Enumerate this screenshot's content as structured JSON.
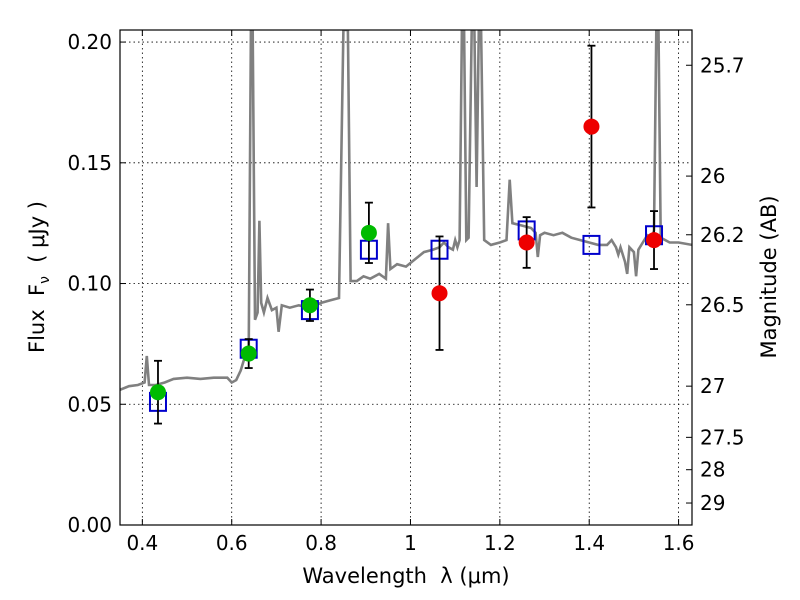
{
  "chart_data": {
    "type": "scatter",
    "xlabel": "Wavelength  λ (μm)",
    "ylabel": "Flux  F_ν  ( μJy )",
    "ylabel_right": "Magnitude (AB)",
    "xlim": [
      0.35,
      1.63
    ],
    "ylim": [
      0.0,
      0.205
    ],
    "x_ticks": [
      0.4,
      0.6,
      0.8,
      1.0,
      1.2,
      1.4,
      1.6
    ],
    "x_tick_labels": [
      "0.4",
      "0.6",
      "0.8",
      "1",
      "1.2",
      "1.4",
      "1.6"
    ],
    "y_ticks": [
      0.0,
      0.05,
      0.1,
      0.15,
      0.2
    ],
    "y_tick_labels": [
      "0.00",
      "0.05",
      "0.10",
      "0.15",
      "0.20"
    ],
    "right_ticks": [
      {
        "flux": 0.1904,
        "label": "25.7"
      },
      {
        "flux": 0.1445,
        "label": "26"
      },
      {
        "flux": 0.1202,
        "label": "26.2"
      },
      {
        "flux": 0.0912,
        "label": "26.5"
      },
      {
        "flux": 0.0575,
        "label": "27"
      },
      {
        "flux": 0.0363,
        "label": "27.5"
      },
      {
        "flux": 0.0229,
        "label": "28"
      },
      {
        "flux": 0.0091,
        "label": "29"
      }
    ],
    "grid": true,
    "series": [
      {
        "marker": "square-open",
        "color": "#0000cc",
        "points": [
          {
            "x": 0.435,
            "y": 0.051
          },
          {
            "x": 0.638,
            "y": 0.073
          },
          {
            "x": 0.775,
            "y": 0.089
          },
          {
            "x": 0.907,
            "y": 0.114
          },
          {
            "x": 1.065,
            "y": 0.114
          },
          {
            "x": 1.26,
            "y": 0.122
          },
          {
            "x": 1.405,
            "y": 0.116
          },
          {
            "x": 1.545,
            "y": 0.12
          }
        ]
      },
      {
        "marker": "circle-filled",
        "color": "#00bb00",
        "points": [
          {
            "x": 0.435,
            "y": 0.055,
            "err": 0.013
          },
          {
            "x": 0.638,
            "y": 0.071,
            "err": 0.006
          },
          {
            "x": 0.775,
            "y": 0.091,
            "err": 0.0065
          },
          {
            "x": 0.907,
            "y": 0.121,
            "err": 0.0125
          }
        ]
      },
      {
        "marker": "circle-filled",
        "color": "#ee0000",
        "points": [
          {
            "x": 1.065,
            "y": 0.096,
            "err": 0.0235
          },
          {
            "x": 1.26,
            "y": 0.117,
            "err": 0.0105
          },
          {
            "x": 1.405,
            "y": 0.165,
            "err": 0.0335
          },
          {
            "x": 1.545,
            "y": 0.118,
            "err": 0.012
          }
        ]
      },
      {
        "marker": "line",
        "color": "#808080",
        "points": [
          {
            "x": 0.35,
            "y": 0.056
          },
          {
            "x": 0.37,
            "y": 0.0575
          },
          {
            "x": 0.39,
            "y": 0.058
          },
          {
            "x": 0.405,
            "y": 0.059
          },
          {
            "x": 0.41,
            "y": 0.07
          },
          {
            "x": 0.415,
            "y": 0.058
          },
          {
            "x": 0.43,
            "y": 0.058
          },
          {
            "x": 0.45,
            "y": 0.059
          },
          {
            "x": 0.47,
            "y": 0.0605
          },
          {
            "x": 0.5,
            "y": 0.061
          },
          {
            "x": 0.53,
            "y": 0.0605
          },
          {
            "x": 0.56,
            "y": 0.061
          },
          {
            "x": 0.59,
            "y": 0.061
          },
          {
            "x": 0.6,
            "y": 0.059
          },
          {
            "x": 0.61,
            "y": 0.06
          },
          {
            "x": 0.62,
            "y": 0.064
          },
          {
            "x": 0.63,
            "y": 0.07
          },
          {
            "x": 0.638,
            "y": 0.071
          },
          {
            "x": 0.643,
            "y": 0.205
          },
          {
            "x": 0.647,
            "y": 0.205
          },
          {
            "x": 0.652,
            "y": 0.085
          },
          {
            "x": 0.658,
            "y": 0.088
          },
          {
            "x": 0.662,
            "y": 0.126
          },
          {
            "x": 0.666,
            "y": 0.092
          },
          {
            "x": 0.672,
            "y": 0.088
          },
          {
            "x": 0.68,
            "y": 0.094
          },
          {
            "x": 0.69,
            "y": 0.089
          },
          {
            "x": 0.7,
            "y": 0.09
          },
          {
            "x": 0.705,
            "y": 0.08
          },
          {
            "x": 0.712,
            "y": 0.091
          },
          {
            "x": 0.73,
            "y": 0.09
          },
          {
            "x": 0.75,
            "y": 0.091
          },
          {
            "x": 0.775,
            "y": 0.09
          },
          {
            "x": 0.8,
            "y": 0.092
          },
          {
            "x": 0.82,
            "y": 0.093
          },
          {
            "x": 0.84,
            "y": 0.094
          },
          {
            "x": 0.85,
            "y": 0.205
          },
          {
            "x": 0.86,
            "y": 0.205
          },
          {
            "x": 0.866,
            "y": 0.101
          },
          {
            "x": 0.88,
            "y": 0.101
          },
          {
            "x": 0.895,
            "y": 0.103
          },
          {
            "x": 0.91,
            "y": 0.102
          },
          {
            "x": 0.93,
            "y": 0.104
          },
          {
            "x": 0.945,
            "y": 0.102
          },
          {
            "x": 0.95,
            "y": 0.125
          },
          {
            "x": 0.955,
            "y": 0.106
          },
          {
            "x": 0.97,
            "y": 0.108
          },
          {
            "x": 0.99,
            "y": 0.107
          },
          {
            "x": 1.01,
            "y": 0.11
          },
          {
            "x": 1.03,
            "y": 0.113
          },
          {
            "x": 1.05,
            "y": 0.114
          },
          {
            "x": 1.065,
            "y": 0.115
          },
          {
            "x": 1.075,
            "y": 0.117
          },
          {
            "x": 1.085,
            "y": 0.115
          },
          {
            "x": 1.095,
            "y": 0.114
          },
          {
            "x": 1.1,
            "y": 0.118
          },
          {
            "x": 1.105,
            "y": 0.115
          },
          {
            "x": 1.11,
            "y": 0.118
          },
          {
            "x": 1.115,
            "y": 0.205
          },
          {
            "x": 1.12,
            "y": 0.205
          },
          {
            "x": 1.125,
            "y": 0.118
          },
          {
            "x": 1.13,
            "y": 0.119
          },
          {
            "x": 1.137,
            "y": 0.205
          },
          {
            "x": 1.143,
            "y": 0.205
          },
          {
            "x": 1.148,
            "y": 0.14
          },
          {
            "x": 1.153,
            "y": 0.205
          },
          {
            "x": 1.158,
            "y": 0.205
          },
          {
            "x": 1.165,
            "y": 0.118
          },
          {
            "x": 1.18,
            "y": 0.116
          },
          {
            "x": 1.2,
            "y": 0.117
          },
          {
            "x": 1.215,
            "y": 0.118
          },
          {
            "x": 1.222,
            "y": 0.143
          },
          {
            "x": 1.228,
            "y": 0.125
          },
          {
            "x": 1.25,
            "y": 0.124
          },
          {
            "x": 1.27,
            "y": 0.123
          },
          {
            "x": 1.28,
            "y": 0.121
          },
          {
            "x": 1.285,
            "y": 0.111
          },
          {
            "x": 1.29,
            "y": 0.12
          },
          {
            "x": 1.3,
            "y": 0.121
          },
          {
            "x": 1.32,
            "y": 0.12
          },
          {
            "x": 1.34,
            "y": 0.121
          },
          {
            "x": 1.36,
            "y": 0.119
          },
          {
            "x": 1.38,
            "y": 0.118
          },
          {
            "x": 1.4,
            "y": 0.117
          },
          {
            "x": 1.42,
            "y": 0.116
          },
          {
            "x": 1.44,
            "y": 0.116
          },
          {
            "x": 1.45,
            "y": 0.118
          },
          {
            "x": 1.46,
            "y": 0.115
          },
          {
            "x": 1.465,
            "y": 0.112
          },
          {
            "x": 1.47,
            "y": 0.115
          },
          {
            "x": 1.48,
            "y": 0.109
          },
          {
            "x": 1.485,
            "y": 0.104
          },
          {
            "x": 1.49,
            "y": 0.115
          },
          {
            "x": 1.5,
            "y": 0.113
          },
          {
            "x": 1.505,
            "y": 0.103
          },
          {
            "x": 1.51,
            "y": 0.114
          },
          {
            "x": 1.52,
            "y": 0.117
          },
          {
            "x": 1.53,
            "y": 0.12
          },
          {
            "x": 1.54,
            "y": 0.119
          },
          {
            "x": 1.545,
            "y": 0.122
          },
          {
            "x": 1.55,
            "y": 0.205
          },
          {
            "x": 1.555,
            "y": 0.205
          },
          {
            "x": 1.56,
            "y": 0.119
          },
          {
            "x": 1.58,
            "y": 0.117
          },
          {
            "x": 1.6,
            "y": 0.117
          },
          {
            "x": 1.63,
            "y": 0.116
          }
        ]
      }
    ]
  }
}
